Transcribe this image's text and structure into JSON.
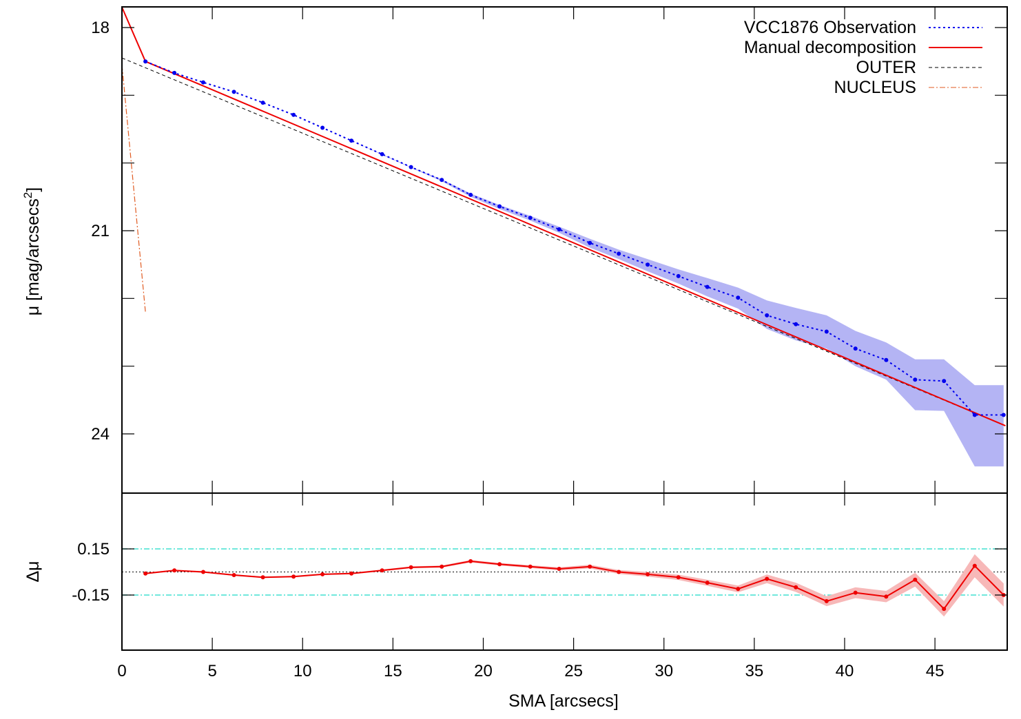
{
  "chart_data": [
    {
      "type": "line",
      "title": "",
      "xlabel": "",
      "ylabel": "μ [mag/arcsecs²]",
      "ylabel_parts": {
        "main": "μ [mag/arcsecs",
        "sup": "2",
        "end": "]"
      },
      "xlim": [
        0,
        49
      ],
      "ylim": [
        18,
        24.5
      ],
      "y_inverted": true,
      "yticks": [
        18,
        21,
        24
      ],
      "ytick_labels": [
        "18",
        "21",
        "24"
      ],
      "minor_yticks": [
        19,
        20,
        22,
        23
      ],
      "legend_position": "top-right",
      "grid": false,
      "series": [
        {
          "name": "VCC1876 Observation",
          "style": "dotted-points",
          "color": "#0000ee",
          "band_color": "#b4b4f4",
          "x": [
            1.3,
            2.9,
            4.5,
            6.2,
            7.8,
            9.5,
            11.1,
            12.7,
            14.4,
            16.0,
            17.7,
            19.3,
            20.9,
            22.6,
            24.2,
            25.9,
            27.5,
            29.1,
            30.8,
            32.4,
            34.1,
            35.7,
            37.3,
            39.0,
            40.6,
            42.3,
            43.9,
            45.5,
            47.2,
            48.8
          ],
          "y": [
            18.5,
            18.67,
            18.81,
            18.95,
            19.11,
            19.29,
            19.48,
            19.67,
            19.87,
            20.06,
            20.25,
            20.47,
            20.64,
            20.81,
            20.98,
            21.18,
            21.34,
            21.5,
            21.67,
            21.83,
            21.99,
            22.25,
            22.38,
            22.49,
            22.74,
            22.91,
            23.2,
            23.22,
            23.72,
            23.72
          ],
          "band_low": [
            18.5,
            18.67,
            18.81,
            18.95,
            19.11,
            19.29,
            19.48,
            19.67,
            19.87,
            20.06,
            20.24,
            20.45,
            20.62,
            20.78,
            20.94,
            21.12,
            21.28,
            21.42,
            21.57,
            21.7,
            21.84,
            22.03,
            22.14,
            22.25,
            22.48,
            22.65,
            22.9,
            22.9,
            23.28,
            23.28
          ],
          "band_high": [
            18.5,
            18.67,
            18.81,
            18.95,
            19.11,
            19.29,
            19.48,
            19.67,
            19.88,
            20.07,
            20.27,
            20.5,
            20.68,
            20.85,
            21.03,
            21.25,
            21.42,
            21.6,
            21.78,
            21.97,
            22.15,
            22.45,
            22.62,
            22.74,
            23.0,
            23.2,
            23.65,
            23.66,
            24.48,
            24.48
          ]
        },
        {
          "name": "Manual decomposition",
          "style": "solid",
          "color": "#ee0000",
          "x": [
            0,
            1.3,
            48.9
          ],
          "y": [
            17.7,
            18.5,
            23.88
          ]
        },
        {
          "name": "OUTER",
          "style": "dashed",
          "color": "#000000",
          "x": [
            0,
            48.9
          ],
          "y": [
            18.45,
            23.88
          ]
        },
        {
          "name": "NUCLEUS",
          "style": "dash-dot",
          "color": "#e05a20",
          "x": [
            0,
            1.3
          ],
          "y": [
            18.55,
            22.2
          ]
        }
      ]
    },
    {
      "type": "line",
      "title": "",
      "xlabel": "SMA [arcsecs]",
      "ylabel": "Δμ",
      "xlim": [
        0,
        49
      ],
      "ylim": [
        -0.35,
        0.33
      ],
      "xticks": [
        0,
        5,
        10,
        15,
        20,
        25,
        30,
        35,
        40,
        45
      ],
      "xtick_labels": [
        "0",
        "5",
        "10",
        "15",
        "20",
        "25",
        "30",
        "35",
        "40",
        "45"
      ],
      "yticks": [
        0.15,
        -0.15
      ],
      "ytick_labels": [
        "0.15",
        "-0.15"
      ],
      "grid": false,
      "reference_lines": [
        {
          "y": 0.15,
          "style": "dash-dot",
          "color": "#40e0d0"
        },
        {
          "y": -0.15,
          "style": "dash-dot",
          "color": "#40e0d0"
        },
        {
          "y": 0.0,
          "style": "dotted",
          "color": "#000000"
        }
      ],
      "series": [
        {
          "style": "solid-points",
          "color": "#ee0000",
          "band_color": "#f7b8b8",
          "x": [
            1.3,
            2.9,
            4.5,
            6.2,
            7.8,
            9.5,
            11.1,
            12.7,
            14.4,
            16.0,
            17.7,
            19.3,
            20.9,
            22.6,
            24.2,
            25.9,
            27.5,
            29.1,
            30.8,
            32.4,
            34.1,
            35.7,
            37.3,
            39.0,
            40.6,
            42.3,
            43.9,
            45.5,
            47.2,
            48.8
          ],
          "y": [
            -0.01,
            0.01,
            0.0,
            -0.02,
            -0.035,
            -0.03,
            -0.015,
            -0.01,
            0.01,
            0.03,
            0.035,
            0.07,
            0.05,
            0.035,
            0.02,
            0.035,
            0.0,
            -0.015,
            -0.035,
            -0.07,
            -0.11,
            -0.045,
            -0.1,
            -0.19,
            -0.135,
            -0.16,
            -0.05,
            -0.24,
            0.04,
            -0.15
          ],
          "band_half_width": [
            0.005,
            0.005,
            0.005,
            0.005,
            0.005,
            0.005,
            0.005,
            0.005,
            0.006,
            0.006,
            0.007,
            0.008,
            0.008,
            0.009,
            0.01,
            0.012,
            0.013,
            0.015,
            0.017,
            0.02,
            0.022,
            0.028,
            0.03,
            0.032,
            0.035,
            0.037,
            0.045,
            0.05,
            0.075,
            0.075
          ]
        }
      ]
    }
  ],
  "legend": {
    "entries": [
      "VCC1876 Observation",
      "Manual decomposition",
      "OUTER",
      "NUCLEUS"
    ]
  }
}
